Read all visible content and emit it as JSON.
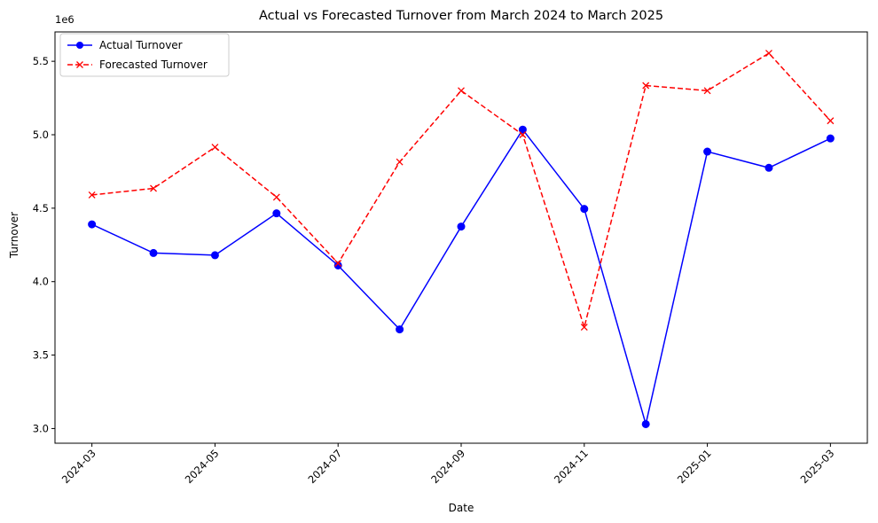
{
  "chart_data": {
    "type": "line",
    "title": "Actual vs Forecasted Turnover from March 2024 to March 2025",
    "xlabel": "Date",
    "ylabel": "Turnover",
    "y_offset_label": "1e6",
    "x": [
      "2024-03",
      "2024-04",
      "2024-05",
      "2024-06",
      "2024-07",
      "2024-08",
      "2024-09",
      "2024-10",
      "2024-11",
      "2024-12",
      "2025-01",
      "2025-02",
      "2025-03"
    ],
    "x_tick_labels": [
      "2024-03",
      "2024-05",
      "2024-07",
      "2024-09",
      "2024-11",
      "2025-01",
      "2025-03"
    ],
    "y_ticks": [
      3.0,
      3.5,
      4.0,
      4.5,
      5.0,
      5.5
    ],
    "y_tick_labels": [
      "3.0",
      "3.5",
      "4.0",
      "4.5",
      "5.0",
      "5.5"
    ],
    "ylim": [
      2.9,
      5.7
    ],
    "y_unit_multiplier": 1000000,
    "grid": false,
    "legend_position": "top-left",
    "series": [
      {
        "name": "Actual Turnover",
        "color": "#0000ff",
        "line_style": "solid",
        "marker": "circle",
        "values": [
          4.39,
          4.195,
          4.18,
          4.465,
          4.11,
          3.675,
          4.375,
          5.035,
          4.495,
          3.03,
          4.885,
          4.775,
          4.975
        ]
      },
      {
        "name": "Forecasted Turnover",
        "color": "#ff0000",
        "line_style": "dashed",
        "marker": "x",
        "values": [
          4.59,
          4.635,
          4.915,
          4.575,
          4.125,
          4.815,
          5.3,
          5.0,
          3.69,
          5.335,
          5.3,
          5.555,
          5.095
        ]
      }
    ]
  }
}
